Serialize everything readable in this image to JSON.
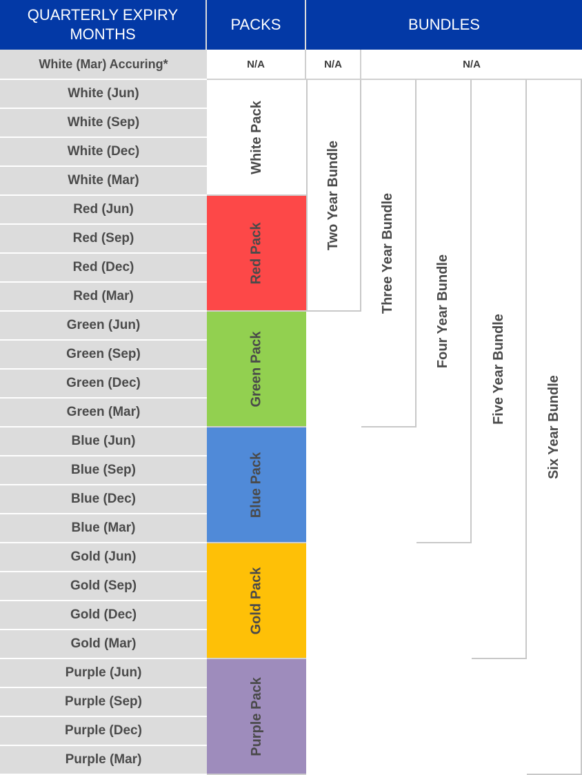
{
  "header": {
    "expiry_col": "QUARTERLY EXPIRY MONTHS",
    "packs_col": "PACKS",
    "bundles_col": "BUNDLES"
  },
  "first_row": {
    "label": "White (Mar) Accuring*",
    "packs_value": "N/A",
    "two_year_value": "N/A",
    "other_bundles_value": "N/A"
  },
  "months": [
    "White (Jun)",
    "White (Sep)",
    "White (Dec)",
    "White (Mar)",
    "Red (Jun)",
    "Red (Sep)",
    "Red (Dec)",
    "Red (Mar)",
    "Green (Jun)",
    "Green (Sep)",
    "Green (Dec)",
    "Green (Mar)",
    "Blue (Jun)",
    "Blue (Sep)",
    "Blue (Dec)",
    "Blue (Mar)",
    "Gold (Jun)",
    "Gold (Sep)",
    "Gold (Dec)",
    "Gold (Mar)",
    "Purple (Jun)",
    "Purple (Sep)",
    "Purple (Dec)",
    "Purple (Mar)"
  ],
  "packs": [
    {
      "label": "White Pack",
      "color": "#ffffff"
    },
    {
      "label": "Red Pack",
      "color": "#fd4848"
    },
    {
      "label": "Green Pack",
      "color": "#92d050"
    },
    {
      "label": "Blue Pack",
      "color": "#508ad8"
    },
    {
      "label": "Gold Pack",
      "color": "#fec007"
    },
    {
      "label": "Purple Pack",
      "color": "#9e8cbc"
    }
  ],
  "bundles": [
    {
      "label": "Two Year Bundle",
      "covers_rows": 8
    },
    {
      "label": "Three Year Bundle",
      "covers_rows": 12
    },
    {
      "label": "Four Year Bundle",
      "covers_rows": 16
    },
    {
      "label": "Five Year Bundle",
      "covers_rows": 20
    },
    {
      "label": "Six Year Bundle",
      "covers_rows": 24
    }
  ]
}
